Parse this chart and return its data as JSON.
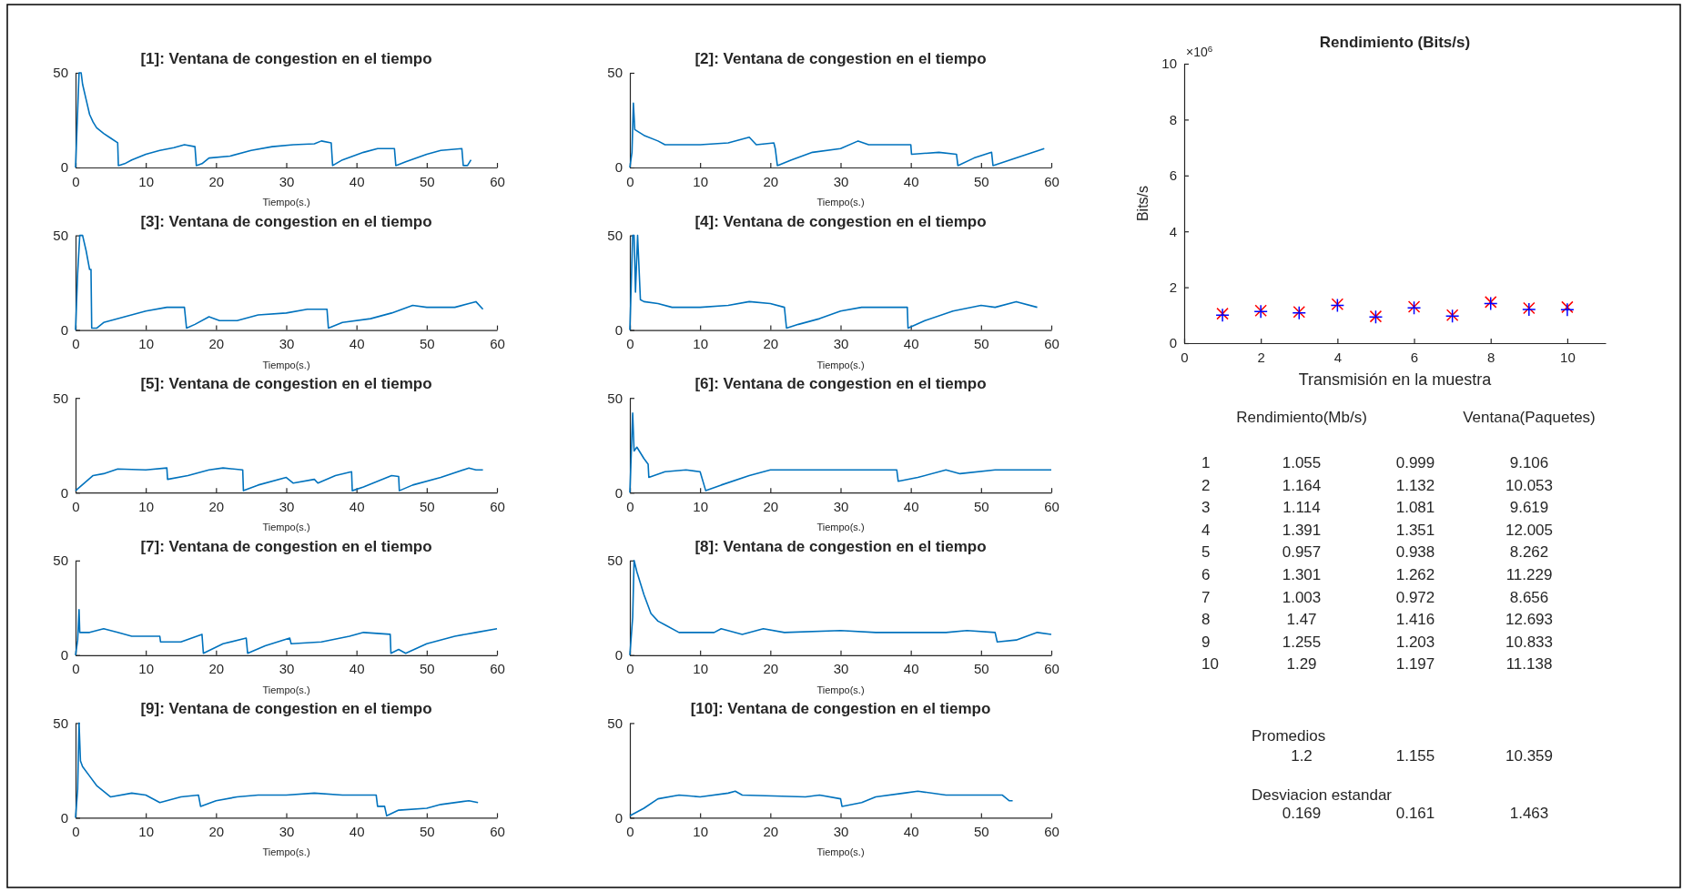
{
  "chart_data": [
    {
      "type": "line",
      "title": "[1]: Ventana de congestion en el tiempo",
      "xlabel": "Tiempo(s.)",
      "xlim": [
        0,
        60
      ],
      "xticks": [
        0,
        10,
        20,
        30,
        40,
        50,
        60
      ],
      "ylim": [
        0,
        50
      ],
      "yticks": [
        0,
        50
      ],
      "series": [
        {
          "color": "#0072bd",
          "x": [
            0,
            0.3,
            0.5,
            0.8,
            1,
            1.5,
            2,
            2.5,
            3,
            4,
            5,
            6,
            6.1,
            7,
            8,
            10,
            12,
            14,
            15.5,
            17,
            17.2,
            18,
            19,
            22,
            25,
            28,
            31,
            34,
            35,
            36.4,
            36.6,
            38,
            41,
            43,
            45.4,
            45.6,
            47,
            50,
            52,
            55,
            55.2,
            55.8,
            56.3
          ],
          "values": [
            0,
            30,
            50,
            50,
            44,
            36,
            28,
            24,
            21,
            18,
            15.5,
            13,
            1,
            2,
            4,
            7,
            9,
            10.5,
            12,
            11,
            1,
            2,
            5,
            6,
            9,
            11,
            12,
            12.5,
            14,
            13,
            1,
            4,
            8,
            10,
            10,
            1,
            3,
            7,
            9,
            10,
            1,
            1,
            4
          ]
        }
      ]
    },
    {
      "type": "line",
      "title": "[2]: Ventana de congestion en el tiempo",
      "xlabel": "Tiempo(s.)",
      "xlim": [
        0,
        60
      ],
      "xticks": [
        0,
        10,
        20,
        30,
        40,
        50,
        60
      ],
      "ylim": [
        0,
        50
      ],
      "yticks": [
        0,
        50
      ],
      "series": [
        {
          "color": "#0072bd",
          "x": [
            0,
            0.3,
            0.5,
            0.7,
            2,
            4,
            5,
            10,
            14,
            17,
            18,
            20.5,
            20.7,
            21,
            23,
            26,
            30,
            32.5,
            34,
            38,
            40,
            40.1,
            44,
            46.5,
            46.7,
            49,
            51.5,
            51.7,
            55,
            59
          ],
          "values": [
            0,
            8,
            34,
            20,
            17,
            14,
            12,
            12,
            13,
            16,
            12,
            13,
            10,
            1,
            4,
            8,
            10,
            14,
            12,
            12,
            12,
            7,
            8,
            7,
            1,
            5,
            8,
            1,
            5,
            10
          ]
        }
      ]
    },
    {
      "type": "line",
      "title": "[3]: Ventana de congestion en el tiempo",
      "xlabel": "Tiempo(s.)",
      "xlim": [
        0,
        60
      ],
      "xticks": [
        0,
        10,
        20,
        30,
        40,
        50,
        60
      ],
      "ylim": [
        0,
        50
      ],
      "yticks": [
        0,
        50
      ],
      "series": [
        {
          "color": "#0072bd",
          "x": [
            0,
            0.3,
            0.6,
            1,
            1.5,
            2,
            2.2,
            2.3,
            3,
            4,
            7,
            10,
            13,
            15.5,
            15.8,
            17,
            19,
            20.5,
            23,
            26,
            30,
            33,
            35.8,
            36,
            38,
            42,
            45,
            48,
            50,
            54,
            56,
            57,
            58
          ],
          "values": [
            0,
            30,
            50,
            50,
            42,
            32,
            32,
            1,
            1,
            4,
            7,
            10,
            12,
            12,
            1,
            3,
            7,
            5,
            5,
            8,
            9,
            11,
            11,
            1,
            4,
            6,
            9,
            13,
            12,
            12,
            14,
            15,
            11
          ]
        }
      ]
    },
    {
      "type": "line",
      "title": "[4]: Ventana de congestion en el tiempo",
      "xlabel": "Tiempo(s.)",
      "xlim": [
        0,
        60
      ],
      "xticks": [
        0,
        10,
        20,
        30,
        40,
        50,
        60
      ],
      "ylim": [
        0,
        50
      ],
      "yticks": [
        0,
        50
      ],
      "series": [
        {
          "color": "#0072bd",
          "x": [
            0,
            0.4,
            0.6,
            0.8,
            1.1,
            1.5,
            2,
            4,
            6,
            10,
            14,
            17,
            20,
            22,
            22.3,
            24,
            27,
            30,
            33,
            39.5,
            39.6,
            42,
            46,
            50,
            52,
            55,
            58
          ],
          "values": [
            0,
            50,
            50,
            20,
            50,
            16,
            15,
            14,
            12,
            12,
            13,
            15,
            14,
            12,
            1,
            3,
            6,
            10,
            12,
            12,
            1,
            5,
            10,
            13,
            12,
            15,
            12
          ]
        }
      ]
    },
    {
      "type": "line",
      "title": "[5]: Ventana de congestion en el tiempo",
      "xlabel": "Tiempo(s.)",
      "xlim": [
        0,
        60
      ],
      "xticks": [
        0,
        10,
        20,
        30,
        40,
        50,
        60
      ],
      "ylim": [
        0,
        50
      ],
      "yticks": [
        0,
        50
      ],
      "series": [
        {
          "color": "#0072bd",
          "x": [
            0,
            2.5,
            4,
            6,
            10,
            13,
            13.1,
            16,
            19,
            21,
            23.8,
            23.9,
            26,
            30,
            31,
            34,
            34.5,
            37,
            39.3,
            39.4,
            41,
            45,
            46,
            46.1,
            48,
            52,
            56,
            57,
            58
          ],
          "values": [
            1,
            9,
            10,
            12.5,
            12,
            13,
            7,
            9,
            12,
            13,
            12,
            1,
            4,
            8,
            5,
            7,
            5,
            9,
            11,
            1,
            3,
            9,
            8.5,
            1,
            4,
            8,
            13,
            12,
            12
          ]
        }
      ]
    },
    {
      "type": "line",
      "title": "[6]: Ventana de congestion en el tiempo",
      "xlabel": "Tiempo(s.)",
      "xlim": [
        0,
        60
      ],
      "xticks": [
        0,
        10,
        20,
        30,
        40,
        50,
        60
      ],
      "ylim": [
        0,
        50
      ],
      "yticks": [
        0,
        50
      ],
      "series": [
        {
          "color": "#0072bd",
          "x": [
            0,
            0.4,
            0.6,
            1,
            2,
            2.6,
            2.7,
            5,
            8,
            10,
            10.8,
            13,
            17,
            20,
            25,
            30,
            38,
            38.2,
            41,
            45,
            47,
            52,
            60
          ],
          "values": [
            0,
            42,
            22,
            24,
            18,
            15,
            8,
            11,
            12,
            11,
            1,
            4,
            9,
            12,
            12,
            12,
            12,
            6,
            8,
            12,
            10,
            12,
            12
          ]
        }
      ]
    },
    {
      "type": "line",
      "title": "[7]: Ventana de congestion en el tiempo",
      "xlabel": "Tiempo(s.)",
      "xlim": [
        0,
        60
      ],
      "xticks": [
        0,
        10,
        20,
        30,
        40,
        50,
        60
      ],
      "ylim": [
        0,
        50
      ],
      "yticks": [
        0,
        50
      ],
      "series": [
        {
          "color": "#0072bd",
          "x": [
            0,
            0.3,
            0.5,
            0.6,
            2,
            4,
            6,
            8,
            12,
            12.1,
            15,
            18,
            18.2,
            21,
            24.3,
            24.5,
            27,
            30.5,
            30.7,
            35,
            39,
            41,
            44.8,
            44.9,
            46,
            47,
            50,
            54,
            57,
            60
          ],
          "values": [
            0,
            8,
            24,
            12,
            12,
            14,
            12,
            10,
            10,
            7,
            7,
            11,
            1,
            6,
            9,
            1,
            5,
            9,
            6,
            7,
            10,
            12,
            11,
            1,
            3,
            1,
            6,
            10,
            12,
            14
          ]
        }
      ]
    },
    {
      "type": "line",
      "title": "[8]: Ventana de congestion en el tiempo",
      "xlabel": "Tiempo(s.)",
      "xlim": [
        0,
        60
      ],
      "xticks": [
        0,
        10,
        20,
        30,
        40,
        50,
        60
      ],
      "ylim": [
        0,
        50
      ],
      "yticks": [
        0,
        50
      ],
      "series": [
        {
          "color": "#0072bd",
          "x": [
            0,
            0.4,
            0.6,
            1,
            2,
            3,
            4,
            5,
            7,
            12,
            13,
            16,
            19,
            22,
            30,
            35,
            45,
            48,
            52,
            52.3,
            55,
            58,
            60
          ],
          "values": [
            0,
            20,
            50,
            44,
            32,
            22,
            18,
            16,
            12,
            12,
            14,
            11,
            14,
            12,
            13,
            12,
            12,
            13,
            12,
            7,
            8,
            12,
            11
          ]
        }
      ]
    },
    {
      "type": "line",
      "title": "[9]: Ventana de congestion en el tiempo",
      "xlabel": "Tiempo(s.)",
      "xlim": [
        0,
        60
      ],
      "xticks": [
        0,
        10,
        20,
        30,
        40,
        50,
        60
      ],
      "ylim": [
        0,
        50
      ],
      "yticks": [
        0,
        50
      ],
      "series": [
        {
          "color": "#0072bd",
          "x": [
            0,
            0.3,
            0.5,
            0.7,
            1,
            2,
            3,
            4,
            5,
            8,
            10,
            12,
            15,
            17.5,
            17.8,
            20,
            23,
            26,
            30,
            34,
            38,
            42.8,
            43,
            44,
            44.3,
            46,
            50,
            52,
            56,
            57.3
          ],
          "values": [
            0,
            15,
            50,
            30,
            27,
            22,
            17,
            14,
            11,
            13,
            12,
            8,
            11,
            12,
            6,
            9,
            11,
            12,
            12,
            13,
            12,
            12,
            6,
            6,
            1,
            4,
            5,
            7,
            9,
            8
          ]
        }
      ]
    },
    {
      "type": "line",
      "title": "[10]: Ventana de congestion en el tiempo",
      "xlabel": "Tiempo(s.)",
      "xlim": [
        0,
        60
      ],
      "xticks": [
        0,
        10,
        20,
        30,
        40,
        50,
        60
      ],
      "ylim": [
        0,
        50
      ],
      "yticks": [
        0,
        50
      ],
      "series": [
        {
          "color": "#0072bd",
          "x": [
            0,
            2,
            4,
            7,
            10,
            14,
            15,
            16,
            25,
            27,
            30,
            30.2,
            33,
            35,
            39,
            41,
            45,
            50,
            53,
            54,
            54.5
          ],
          "values": [
            1,
            5,
            10,
            12,
            11,
            13,
            14,
            12,
            11,
            12,
            10,
            6,
            8,
            11,
            13,
            14,
            12,
            12,
            12,
            9,
            9
          ]
        }
      ]
    },
    {
      "type": "scatter",
      "title": "Rendimiento (Bits/s)",
      "xlabel": "Transmisión en la muestra",
      "ylabel": "Bits/s",
      "x": [
        1,
        2,
        3,
        4,
        5,
        6,
        7,
        8,
        9,
        10
      ],
      "xlim": [
        0,
        11
      ],
      "xticks": [
        0,
        2,
        4,
        6,
        8,
        10
      ],
      "ylim": [
        0,
        10
      ],
      "yticks": [
        0,
        2,
        4,
        6,
        8,
        10
      ],
      "annotations": [
        "×10$^{6}$"
      ],
      "series": [
        {
          "color": "#ff0000",
          "marker": "x",
          "values": [
            1.055,
            1.164,
            1.114,
            1.391,
            0.957,
            1.301,
            1.003,
            1.47,
            1.255,
            1.29
          ]
        },
        {
          "color": "#0000ff",
          "marker": "cross",
          "values": [
            0.999,
            1.132,
            1.081,
            1.351,
            0.938,
            1.262,
            0.972,
            1.416,
            1.203,
            1.197
          ]
        }
      ]
    },
    {
      "type": "heatmap",
      "data_labels": true,
      "categories": [
        "Rendimiento(Mb/s)",
        null,
        "Ventana(Paquetes)"
      ],
      "y_categories": [
        "1",
        "2",
        "3",
        "4",
        "5",
        "6",
        "7",
        "8",
        "9",
        "10"
      ],
      "cells": [
        [
          1.055,
          0.999,
          9.106
        ],
        [
          1.164,
          1.132,
          10.053
        ],
        [
          1.114,
          1.081,
          9.619
        ],
        [
          1.391,
          1.351,
          12.005
        ],
        [
          0.957,
          0.938,
          8.262
        ],
        [
          1.301,
          1.262,
          11.229
        ],
        [
          1.003,
          0.972,
          8.656
        ],
        [
          1.47,
          1.416,
          12.693
        ],
        [
          1.255,
          1.203,
          10.833
        ],
        [
          1.29,
          1.197,
          11.138
        ]
      ],
      "annotations": [
        "Promedios",
        "1.2",
        "1.155",
        "10.359",
        "Desviacion estandar",
        "0.169",
        "0.161",
        "1.463"
      ]
    }
  ]
}
